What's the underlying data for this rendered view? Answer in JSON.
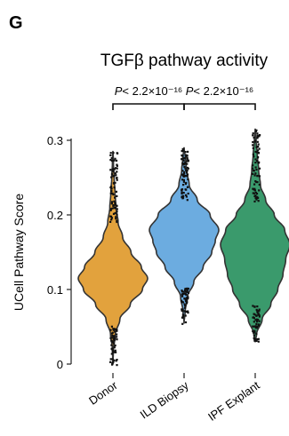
{
  "panel_letter": "G",
  "chart_data": {
    "type": "violin",
    "title": "TGFβ pathway activity",
    "xlabel": "",
    "ylabel": "UCell Pathway Score",
    "ylim": [
      0,
      0.32
    ],
    "yticks": [
      0,
      0.1,
      0.2,
      0.3
    ],
    "ytick_labels": [
      "0",
      "0.1",
      "0.2",
      "0.3"
    ],
    "categories": [
      "Donor",
      "ILD Biopsy",
      "IPF Explant"
    ],
    "colors": [
      "#E2A23D",
      "#6CACE0",
      "#3A9A6C"
    ],
    "series": [
      {
        "name": "Donor",
        "min": 0.0,
        "max": 0.285,
        "median": 0.115,
        "density": [
          [
            0.0,
            0.002
          ],
          [
            0.02,
            0.015
          ],
          [
            0.04,
            0.07
          ],
          [
            0.06,
            0.2
          ],
          [
            0.08,
            0.5
          ],
          [
            0.1,
            0.85
          ],
          [
            0.115,
            1.0
          ],
          [
            0.13,
            0.82
          ],
          [
            0.15,
            0.52
          ],
          [
            0.17,
            0.28
          ],
          [
            0.19,
            0.15
          ],
          [
            0.21,
            0.09
          ],
          [
            0.23,
            0.06
          ],
          [
            0.25,
            0.035
          ],
          [
            0.27,
            0.015
          ],
          [
            0.285,
            0.003
          ]
        ]
      },
      {
        "name": "ILD Biopsy",
        "min": 0.055,
        "max": 0.29,
        "median": 0.165,
        "density": [
          [
            0.055,
            0.002
          ],
          [
            0.07,
            0.03
          ],
          [
            0.09,
            0.1
          ],
          [
            0.11,
            0.28
          ],
          [
            0.13,
            0.55
          ],
          [
            0.15,
            0.8
          ],
          [
            0.165,
            0.9
          ],
          [
            0.18,
            1.0
          ],
          [
            0.2,
            0.75
          ],
          [
            0.22,
            0.38
          ],
          [
            0.24,
            0.15
          ],
          [
            0.26,
            0.07
          ],
          [
            0.275,
            0.04
          ],
          [
            0.29,
            0.003
          ]
        ]
      },
      {
        "name": "IPF Explant",
        "min": 0.03,
        "max": 0.315,
        "median": 0.14,
        "density": [
          [
            0.03,
            0.003
          ],
          [
            0.04,
            0.04
          ],
          [
            0.06,
            0.2
          ],
          [
            0.08,
            0.45
          ],
          [
            0.1,
            0.65
          ],
          [
            0.12,
            0.8
          ],
          [
            0.14,
            0.88
          ],
          [
            0.16,
            1.0
          ],
          [
            0.18,
            0.85
          ],
          [
            0.2,
            0.55
          ],
          [
            0.22,
            0.3
          ],
          [
            0.24,
            0.15
          ],
          [
            0.26,
            0.1
          ],
          [
            0.28,
            0.06
          ],
          [
            0.3,
            0.025
          ],
          [
            0.315,
            0.003
          ]
        ]
      }
    ],
    "comparisons": [
      {
        "from": "Donor",
        "to": "ILD Biopsy",
        "label": "P < 2.2×10⁻¹⁶"
      },
      {
        "from": "ILD Biopsy",
        "to": "IPF Explant",
        "label": "P < 2.2×10⁻¹⁶"
      }
    ],
    "grid": false,
    "legend": "none"
  }
}
